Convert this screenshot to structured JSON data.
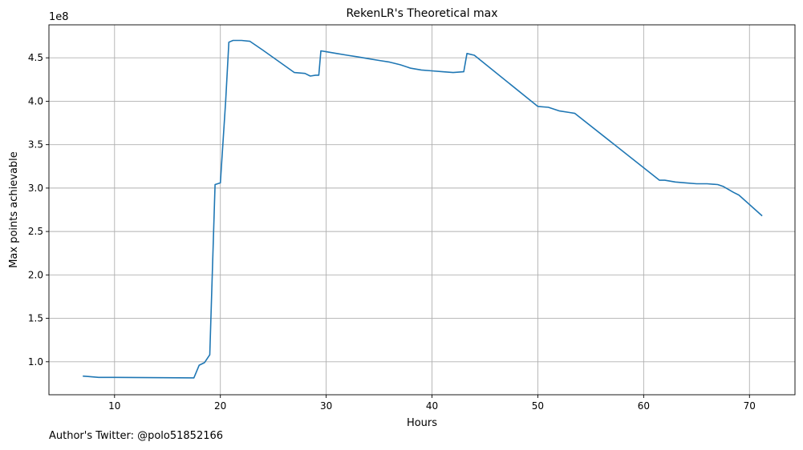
{
  "chart_data": {
    "type": "line",
    "title": "RekenLR's Theoretical max",
    "xlabel": "Hours",
    "ylabel": "Max points achievable",
    "y_multiplier_label": "1e8",
    "xlim": [
      3.8,
      74.3
    ],
    "ylim": [
      0.62,
      4.88
    ],
    "grid": true,
    "x_ticks": [
      10,
      20,
      30,
      40,
      50,
      60,
      70
    ],
    "y_ticks": [
      1.0,
      1.5,
      2.0,
      2.5,
      3.0,
      3.5,
      4.0,
      4.5
    ],
    "x_tick_labels": [
      "10",
      "20",
      "30",
      "40",
      "50",
      "60",
      "70"
    ],
    "y_tick_labels": [
      "1.0",
      "1.5",
      "2.0",
      "2.5",
      "3.0",
      "3.5",
      "4.0",
      "4.5"
    ],
    "series": [
      {
        "color": "#1f77b4",
        "x": [
          7.0,
          7.5,
          8.5,
          10.0,
          17.5,
          18.0,
          18.5,
          19.0,
          19.5,
          20.0,
          20.5,
          20.8,
          21.2,
          22.0,
          22.8,
          24.0,
          27.0,
          28.0,
          28.5,
          29.0,
          29.3,
          29.5,
          30.0,
          31.0,
          32.0,
          33.0,
          34.0,
          35.0,
          36.0,
          37.0,
          38.0,
          39.0,
          40.0,
          41.0,
          42.0,
          43.0,
          43.3,
          44.0,
          50.0,
          51.0,
          52.0,
          53.0,
          53.5,
          61.5,
          62.0,
          63.0,
          64.0,
          65.0,
          66.0,
          67.0,
          67.5,
          68.5,
          69.0,
          71.2
        ],
        "y": [
          0.835,
          0.83,
          0.82,
          0.82,
          0.815,
          0.96,
          0.99,
          1.08,
          3.04,
          3.06,
          4.0,
          4.68,
          4.7,
          4.7,
          4.69,
          4.59,
          4.33,
          4.32,
          4.29,
          4.3,
          4.3,
          4.58,
          4.57,
          4.55,
          4.53,
          4.51,
          4.49,
          4.47,
          4.45,
          4.42,
          4.38,
          4.36,
          4.35,
          4.34,
          4.33,
          4.34,
          4.55,
          4.53,
          3.94,
          3.93,
          3.89,
          3.87,
          3.86,
          3.09,
          3.09,
          3.07,
          3.06,
          3.05,
          3.05,
          3.04,
          3.02,
          2.95,
          2.92,
          2.68
        ]
      }
    ]
  },
  "footer": {
    "note": "Author's Twitter: @polo51852166"
  }
}
